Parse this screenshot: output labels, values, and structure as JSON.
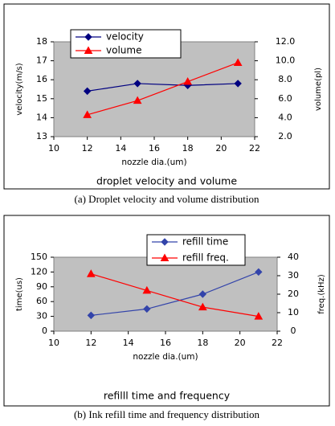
{
  "chart_data": [
    {
      "type": "line",
      "title": "droplet velocity and volume",
      "caption": "(a) Droplet velocity and volume distribution",
      "xlabel": "nozzle dia.(um)",
      "ylabel": "velocity(m/s)",
      "y2label": "volume(pl)",
      "x": [
        12,
        15,
        18,
        21
      ],
      "xlim": [
        10,
        22
      ],
      "xticks": [
        10,
        12,
        14,
        16,
        18,
        20,
        22
      ],
      "ylim": [
        13,
        18
      ],
      "yticks": [
        13,
        14,
        15,
        16,
        17,
        18
      ],
      "y2lim": [
        2,
        12
      ],
      "y2ticks": [
        {
          "value": 2,
          "label": "2.0"
        },
        {
          "value": 4,
          "label": "4.0"
        },
        {
          "value": 6,
          "label": "6.0"
        },
        {
          "value": 8,
          "label": "8.0"
        },
        {
          "value": 10,
          "label": "10.0"
        },
        {
          "value": 12,
          "label": "12.0"
        }
      ],
      "plot_background": "#c0c0c0",
      "series": [
        {
          "name": "velocity",
          "color": "#000080",
          "marker": "diamond",
          "values": [
            15.4,
            15.8,
            15.7,
            15.8
          ]
        },
        {
          "name": "volume",
          "color": "#ff0000",
          "marker": "triangle",
          "axis": "y2",
          "values": [
            4.3,
            5.8,
            7.8,
            9.8
          ]
        }
      ]
    },
    {
      "type": "line",
      "title": "refilll time and frequency",
      "caption": "(b) Ink refill time and frequency distribution",
      "xlabel": "nozzle dia.(um)",
      "ylabel": "time(us)",
      "y2label": "freq.(kHz)",
      "x": [
        12,
        15,
        18,
        21
      ],
      "xlim": [
        10,
        22
      ],
      "xticks": [
        10,
        12,
        14,
        16,
        18,
        20,
        22
      ],
      "ylim": [
        0,
        150
      ],
      "yticks": [
        0,
        30,
        60,
        90,
        120,
        150
      ],
      "y2lim": [
        0,
        40
      ],
      "y2ticks": [
        0,
        10,
        20,
        30,
        40
      ],
      "plot_background": "#c0c0c0",
      "series": [
        {
          "name": "refill time",
          "color": "#3344aa",
          "marker": "diamond",
          "values": [
            32,
            45,
            75,
            120
          ]
        },
        {
          "name": "refill freq.",
          "color": "#ff0000",
          "marker": "triangle",
          "axis": "y2",
          "values": [
            31,
            22,
            13,
            8
          ]
        }
      ]
    }
  ]
}
